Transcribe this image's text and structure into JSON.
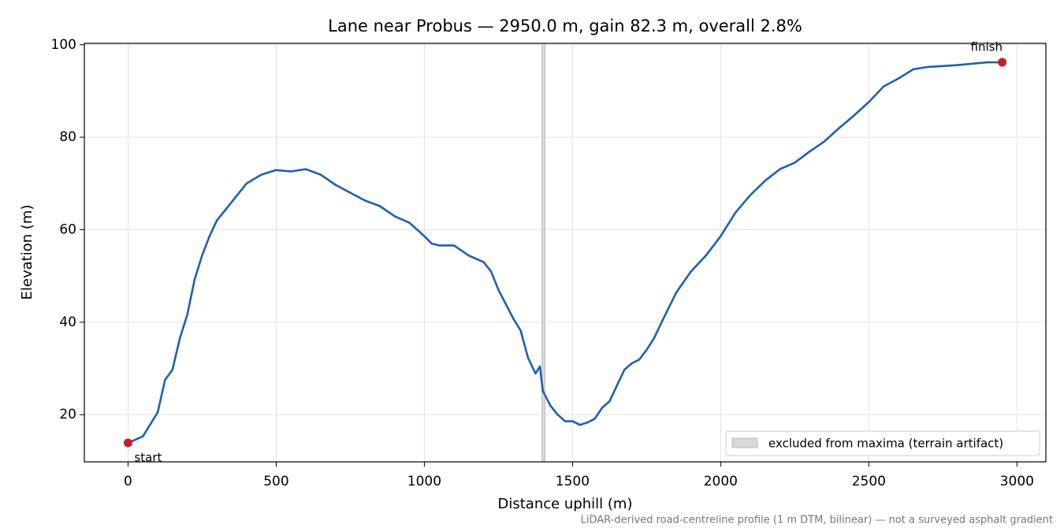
{
  "chart_data": {
    "type": "line",
    "title": "Lane near Probus — 2950.0 m, gain 82.3 m, overall 2.8%",
    "xlabel": "Distance uphill (m)",
    "ylabel": "Elevation (m)",
    "footnote": "LiDAR-derived road-centreline profile (1 m DTM, bilinear) — not a surveyed asphalt gradient",
    "x": [
      0,
      50,
      100,
      125,
      150,
      175,
      200,
      225,
      250,
      275,
      300,
      350,
      400,
      450,
      500,
      550,
      600,
      650,
      700,
      750,
      800,
      850,
      900,
      950,
      1000,
      1025,
      1050,
      1100,
      1150,
      1200,
      1225,
      1250,
      1300,
      1325,
      1350,
      1375,
      1390,
      1400,
      1425,
      1450,
      1475,
      1500,
      1525,
      1550,
      1575,
      1600,
      1625,
      1650,
      1675,
      1700,
      1725,
      1750,
      1775,
      1800,
      1850,
      1900,
      1950,
      2000,
      2050,
      2100,
      2150,
      2200,
      2250,
      2300,
      2350,
      2400,
      2450,
      2500,
      2550,
      2600,
      2650,
      2700,
      2750,
      2800,
      2850,
      2900,
      2950
    ],
    "series": [
      {
        "name": "elevation",
        "color": "#1f5fb4",
        "values": [
          13.9,
          15.3,
          20.5,
          27.5,
          29.7,
          36.5,
          41.6,
          49.3,
          54.4,
          58.6,
          62,
          66,
          70,
          71.9,
          72.9,
          72.6,
          73.1,
          71.9,
          69.7,
          68,
          66.3,
          65.1,
          62.9,
          61.5,
          58.6,
          57,
          56.6,
          56.6,
          54.4,
          53,
          51,
          47,
          40.8,
          38.2,
          32.3,
          28.9,
          30.4,
          25.1,
          22,
          20,
          18.6,
          18.6,
          17.8,
          18.3,
          19.1,
          21.5,
          22.9,
          26.3,
          29.7,
          31.1,
          31.9,
          34,
          36.5,
          39.9,
          46.4,
          51,
          54.4,
          58.6,
          63.7,
          67.5,
          70.6,
          73.1,
          74.5,
          76.9,
          79.1,
          82,
          84.7,
          87.6,
          91,
          92.7,
          94.7,
          95.2,
          95.4,
          95.6,
          95.9,
          96.2,
          96.2
        ]
      }
    ],
    "annotations": [
      {
        "text": "start",
        "x": 0,
        "y": 13.9
      },
      {
        "text": "finish",
        "x": 2950,
        "y": 96.2
      }
    ],
    "marker_color": "#c41e2a",
    "excluded": {
      "label": "excluded from maxima (terrain artifact)",
      "x": [
        1397,
        1407
      ],
      "color": "#d9d9d9"
    },
    "legend": "lower right",
    "grid": true,
    "xlim": [
      -147.5,
      3097.5
    ],
    "xticks": [
      0,
      500,
      1000,
      1500,
      2000,
      2500,
      3000
    ],
    "ylim": [
      9.8,
      100.3
    ],
    "yticks": [
      20,
      40,
      60,
      80,
      100
    ]
  }
}
